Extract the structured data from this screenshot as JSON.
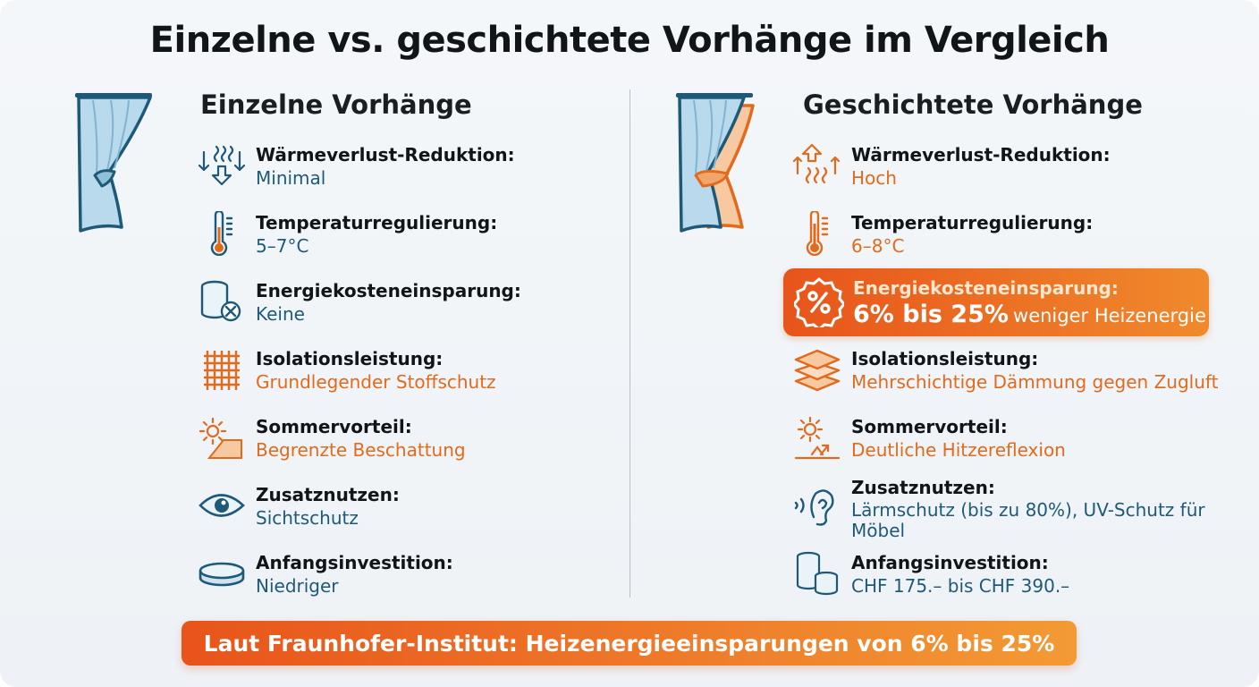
{
  "title": "Einzelne vs. geschichtete Vorhänge im Vergleich",
  "colors": {
    "blue": "#1e5a78",
    "orange": "#e26a1c",
    "accent_gradient": [
      "#e8541b",
      "#f39a35"
    ]
  },
  "left": {
    "heading": "Einzelne Vorhänge",
    "icon": "single-curtain-icon",
    "items": [
      {
        "label": "Wärmeverlust-Reduktion:",
        "value": "Minimal",
        "icon": "heat-down-icon"
      },
      {
        "label": "Temperaturregulierung:",
        "value": "5–7°C",
        "icon": "thermometer-icon"
      },
      {
        "label": "Energiekosteneinsparung:",
        "value": "Keine",
        "icon": "coins-x-icon"
      },
      {
        "label": "Isolationsleistung:",
        "value": "Grundlegender Stoffschutz",
        "icon": "fabric-weave-icon"
      },
      {
        "label": "Sommervorteil:",
        "value": "Begrenzte Beschattung",
        "icon": "sun-shade-icon"
      },
      {
        "label": "Zusatznutzen:",
        "value": "Sichtschutz",
        "icon": "eye-icon"
      },
      {
        "label": "Anfangsinvestition:",
        "value": "Niedriger",
        "icon": "coin-icon"
      }
    ]
  },
  "right": {
    "heading": "Geschichtete Vorhänge",
    "icon": "layered-curtain-icon",
    "items": [
      {
        "label": "Wärmeverlust-Reduktion:",
        "value": "Hoch",
        "icon": "heat-up-icon"
      },
      {
        "label": "Temperaturregulierung:",
        "value": "6–8°C",
        "icon": "thermometer-icon"
      },
      {
        "label": "Energiekosteneinsparung:",
        "value_big": "6% bis 25%",
        "value_small": "weniger Heizenergie",
        "icon": "percent-badge-icon"
      },
      {
        "label": "Isolationsleistung:",
        "value": "Mehrschichtige Dämmung gegen Zugluft",
        "icon": "layers-icon"
      },
      {
        "label": "Sommervorteil:",
        "value": "Deutliche Hitzereflexion",
        "icon": "sun-reflect-icon"
      },
      {
        "label": "Zusatznutzen:",
        "value": "Lärmschutz (bis zu 80%), UV-Schutz für",
        "value_line2": "Möbel",
        "icon": "ear-sound-icon"
      },
      {
        "label": "Anfangsinvestition:",
        "value": "CHF 175.– bis CHF 390.–",
        "icon": "coin-stack-icon"
      }
    ]
  },
  "footer": "Laut Fraunhofer-Institut: Heizenergieeinsparungen von 6% bis 25%"
}
